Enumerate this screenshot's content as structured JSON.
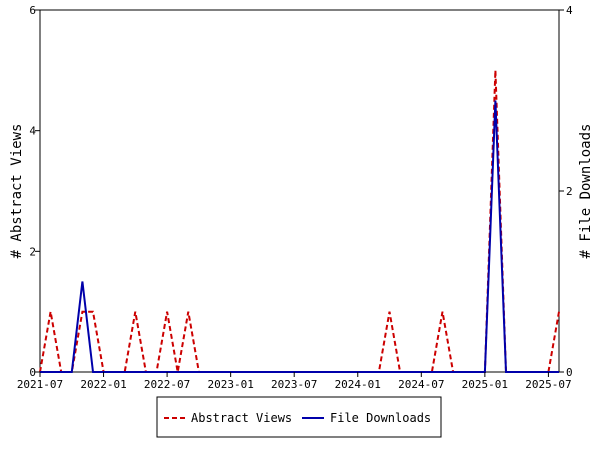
{
  "chart_data": {
    "type": "line",
    "xlabel": "",
    "ylabel_left": "# Abstract Views",
    "ylabel_right": "# File Downloads",
    "x_ticks": [
      "2021-07",
      "2022-01",
      "2022-07",
      "2023-01",
      "2023-07",
      "2024-01",
      "2024-07",
      "2025-01",
      "2025-07"
    ],
    "x_range": [
      "2021-07",
      "2025-08"
    ],
    "ylim_left": [
      0,
      6
    ],
    "yticks_left": [
      0,
      2,
      4,
      6
    ],
    "ylim_right": [
      0,
      4
    ],
    "yticks_right": [
      0,
      2,
      4
    ],
    "legend_position": "bottom",
    "grid": false,
    "series": [
      {
        "name": "Abstract Views",
        "axis": "left",
        "color": "#cc0000",
        "dash": "dashed",
        "points": [
          [
            "2021-07",
            0
          ],
          [
            "2021-08",
            1
          ],
          [
            "2021-09",
            0
          ],
          [
            "2021-10",
            0
          ],
          [
            "2021-11",
            1
          ],
          [
            "2021-12",
            1
          ],
          [
            "2022-01",
            0
          ],
          [
            "2022-02",
            0
          ],
          [
            "2022-03",
            0
          ],
          [
            "2022-04",
            1
          ],
          [
            "2022-05",
            0
          ],
          [
            "2022-06",
            0
          ],
          [
            "2022-07",
            1
          ],
          [
            "2022-08",
            0
          ],
          [
            "2022-09",
            1
          ],
          [
            "2022-10",
            0
          ],
          [
            "2022-11",
            0
          ],
          [
            "2022-12",
            0
          ],
          [
            "2023-01",
            0
          ],
          [
            "2023-06",
            0
          ],
          [
            "2024-01",
            0
          ],
          [
            "2024-02",
            0
          ],
          [
            "2024-03",
            0
          ],
          [
            "2024-04",
            1
          ],
          [
            "2024-05",
            0
          ],
          [
            "2024-06",
            0
          ],
          [
            "2024-07",
            0
          ],
          [
            "2024-08",
            0
          ],
          [
            "2024-09",
            1
          ],
          [
            "2024-10",
            0
          ],
          [
            "2024-11",
            0
          ],
          [
            "2024-12",
            0
          ],
          [
            "2025-01",
            0
          ],
          [
            "2025-02",
            5
          ],
          [
            "2025-03",
            0
          ],
          [
            "2025-04",
            0
          ],
          [
            "2025-05",
            0
          ],
          [
            "2025-06",
            0
          ],
          [
            "2025-07",
            0
          ],
          [
            "2025-08",
            1
          ]
        ]
      },
      {
        "name": "File Downloads",
        "axis": "right",
        "color": "#0000aa",
        "dash": "solid",
        "points": [
          [
            "2021-07",
            0
          ],
          [
            "2021-08",
            0
          ],
          [
            "2021-09",
            0
          ],
          [
            "2021-10",
            0
          ],
          [
            "2021-11",
            1
          ],
          [
            "2021-12",
            0
          ],
          [
            "2022-01",
            0
          ],
          [
            "2023-01",
            0
          ],
          [
            "2024-01",
            0
          ],
          [
            "2024-12",
            0
          ],
          [
            "2025-01",
            0
          ],
          [
            "2025-02",
            3
          ],
          [
            "2025-03",
            0
          ],
          [
            "2025-04",
            0
          ],
          [
            "2025-08",
            0
          ]
        ]
      }
    ]
  }
}
